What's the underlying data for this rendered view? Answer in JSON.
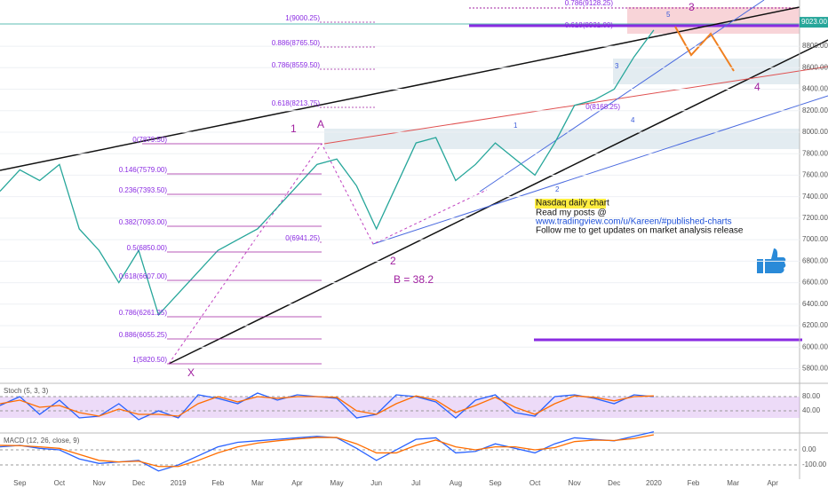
{
  "chart_data": [
    {
      "type": "line",
      "color": "#26a69a",
      "categories": [
        null,
        "Sep",
        null,
        "Oct",
        null,
        "Nov",
        null,
        "Dec",
        null,
        "2019",
        null,
        "Feb",
        null,
        "Mar",
        null,
        "Apr",
        null,
        "May",
        null,
        "Jun",
        null,
        "Jul",
        null,
        "Aug",
        null,
        "Sep",
        null,
        "Oct",
        null,
        "Nov",
        null,
        "Dec",
        null,
        "2020",
        null,
        "Feb",
        null,
        "Mar",
        null,
        "Apr",
        null
      ],
      "values": [
        7450,
        7650,
        7550,
        7700,
        7100,
        6900,
        6600,
        6900,
        6300,
        6500,
        6700,
        6900,
        7000,
        7100,
        7300,
        7500,
        7700,
        7750,
        7500,
        7100,
        7500,
        7900,
        7950,
        7550,
        7700,
        7900,
        7750,
        7600,
        7900,
        8250,
        8300,
        8400,
        8700,
        8950,
        null,
        null,
        null,
        null,
        null,
        null,
        null
      ],
      "ylim": [
        5680,
        9230
      ],
      "yticks": [
        {
          "value": 5800,
          "label": "5800.00"
        },
        {
          "value": 6000,
          "label": "6000.00"
        },
        {
          "value": 6200,
          "label": "6200.00"
        },
        {
          "value": 6400,
          "label": "6400.00"
        },
        {
          "value": 6600,
          "label": "6600.00"
        },
        {
          "value": 6800,
          "label": "6800.00"
        },
        {
          "value": 7000,
          "label": "7000.00"
        },
        {
          "value": 7200,
          "label": "7200.00"
        },
        {
          "value": 7400,
          "label": "7400.00"
        },
        {
          "value": 7600,
          "label": "7600.00"
        },
        {
          "value": 7800,
          "label": "7800.00"
        },
        {
          "value": 8000,
          "label": "8000.00"
        },
        {
          "value": 8200,
          "label": "8200.00"
        },
        {
          "value": 8400,
          "label": "8400.00"
        },
        {
          "value": 8600,
          "label": "8600.00"
        },
        {
          "value": 8800,
          "label": "8800.00"
        }
      ],
      "last_price": {
        "value": 9023,
        "label": "9023.00"
      },
      "grid": true,
      "annotations": [
        "0(7879.50)",
        "0.146(7579.00)",
        "0.236(7393.50)",
        "0.382(7093.00)",
        "0.5(6850.00)",
        "0.618(6607.00)",
        "0.786(6261.25)",
        "0.886(6055.25)",
        "1(5820.50)",
        "0(6941.25)",
        "1(9000.25)",
        "0.886(8765.50)",
        "0.786(8559.50)",
        "0.618(8213.75)",
        "0.786(9128.25)",
        "0.618(8931.00)",
        "0(8168.25)"
      ],
      "waves": [
        "1",
        "A",
        "2",
        "B = 38.2",
        "X",
        "3",
        "4"
      ],
      "sub_waves": [
        "5",
        "3",
        "4",
        "1",
        "2"
      ],
      "note": [
        "Nasdaq daily chart",
        "Read my posts @",
        "www.tradingview.com/u/Kareen/#published-charts",
        "Follow me to get updates on market analysis release"
      ]
    },
    {
      "type": "line",
      "title": "Stoch (5, 3, 3)",
      "series": [
        {
          "color": "#2962ff",
          "values": [
            55,
            80,
            30,
            70,
            20,
            25,
            60,
            15,
            40,
            20,
            85,
            75,
            60,
            90,
            70,
            85,
            80,
            75,
            20,
            30,
            85,
            80,
            65,
            20,
            70,
            85,
            35,
            25,
            80,
            85,
            75,
            60,
            85,
            80,
            null,
            null,
            null,
            null,
            null,
            null,
            null
          ]
        },
        {
          "color": "#ff6d00",
          "values": [
            60,
            70,
            50,
            55,
            35,
            25,
            45,
            30,
            30,
            25,
            60,
            80,
            65,
            80,
            75,
            80,
            80,
            78,
            40,
            30,
            60,
            82,
            70,
            35,
            55,
            78,
            50,
            30,
            60,
            82,
            78,
            68,
            80,
            82,
            null,
            null,
            null,
            null,
            null,
            null,
            null
          ]
        }
      ],
      "ylim": [
        -20,
        115
      ],
      "yticks": [
        {
          "value": 40,
          "label": "40.00"
        },
        {
          "value": 80,
          "label": "80.00"
        }
      ]
    },
    {
      "type": "line",
      "title": "MACD (12, 26, close, 9)",
      "series": [
        {
          "color": "#2962ff",
          "values": [
            20,
            30,
            10,
            0,
            -60,
            -90,
            -80,
            -70,
            -140,
            -100,
            -40,
            20,
            50,
            60,
            70,
            80,
            90,
            80,
            10,
            -70,
            0,
            70,
            80,
            -20,
            -10,
            40,
            10,
            -20,
            40,
            80,
            70,
            60,
            90,
            120,
            null,
            null,
            null,
            null,
            null,
            null,
            null
          ]
        },
        {
          "color": "#ff6d00",
          "values": [
            30,
            28,
            20,
            10,
            -30,
            -70,
            -80,
            -75,
            -110,
            -110,
            -70,
            -20,
            20,
            45,
            60,
            72,
            82,
            82,
            40,
            -20,
            -20,
            30,
            65,
            20,
            0,
            20,
            20,
            0,
            15,
            55,
            65,
            62,
            75,
            100,
            null,
            null,
            null,
            null,
            null,
            null,
            null
          ]
        }
      ],
      "ylim": [
        -194,
        106
      ],
      "yticks": [
        {
          "value": -100,
          "label": "-100.00"
        },
        {
          "value": 0,
          "label": "0.00"
        }
      ]
    }
  ]
}
